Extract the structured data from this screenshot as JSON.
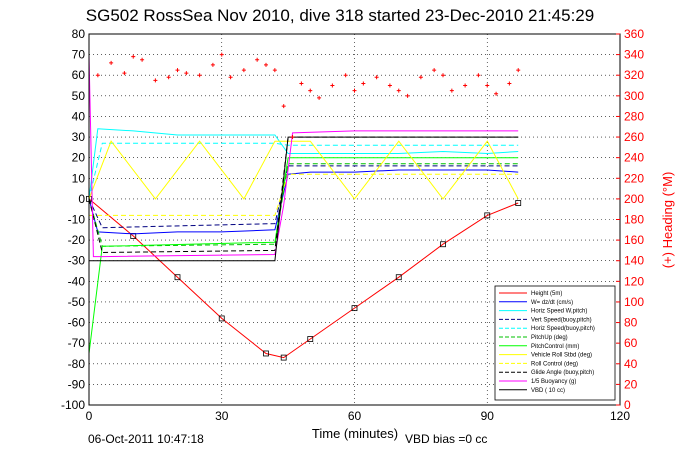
{
  "chart_data": {
    "type": "line",
    "title": "SG502 RossSea Nov 2010, dive 318 started 23-Dec-2010 21:45:29",
    "xlabel": "Time (minutes)",
    "ylabel_right": "(+) Heading (°M)",
    "xlim": [
      0,
      120
    ],
    "ylim_left": [
      -100,
      80
    ],
    "ylim_right": [
      0,
      360
    ],
    "xticks": [
      "0",
      "30",
      "60",
      "90",
      "120"
    ],
    "yticks_left": [
      "80",
      "70",
      "60",
      "50",
      "40",
      "30",
      "20",
      "10",
      "0",
      "-10",
      "-20",
      "-30",
      "-40",
      "-50",
      "-60",
      "-70",
      "-80",
      "-90",
      "-100"
    ],
    "yticks_right": [
      "360",
      "340",
      "320",
      "300",
      "280",
      "260",
      "240",
      "220",
      "200",
      "180",
      "160",
      "140",
      "120",
      "100",
      "80",
      "60",
      "40",
      "20",
      "0"
    ],
    "grid": "dotted",
    "legend_position": "lower-right",
    "series": [
      {
        "name": "Height (5m)",
        "color": "#ff0000",
        "style": "solid",
        "x": [
          0,
          10,
          20,
          30,
          40,
          44,
          50,
          60,
          70,
          80,
          90,
          97
        ],
        "y": [
          0,
          -18,
          -38,
          -58,
          -75,
          -77,
          -68,
          -53,
          -38,
          -22,
          -8,
          -2
        ]
      },
      {
        "name": "W= dz/dt (cm/s)",
        "color": "#0000ff",
        "style": "solid",
        "x": [
          0,
          2,
          10,
          20,
          30,
          42,
          45,
          50,
          60,
          70,
          80,
          90,
          97
        ],
        "y": [
          0,
          -16,
          -17,
          -16,
          -16,
          -15,
          12,
          13,
          13,
          14,
          14,
          14,
          13
        ]
      },
      {
        "name": "Horiz Speed W,pitch)",
        "color": "#00ffff",
        "style": "solid",
        "x": [
          0,
          2,
          10,
          20,
          30,
          42,
          45,
          50,
          60,
          70,
          80,
          90,
          97
        ],
        "y": [
          0,
          34,
          33,
          31,
          31,
          31,
          22,
          22,
          22,
          22,
          23,
          22,
          23
        ]
      },
      {
        "name": "Vert Speed(buoy,pitch)",
        "color": "#000080",
        "style": "dashed",
        "x": [
          0,
          3,
          42,
          45,
          97
        ],
        "y": [
          0,
          -14,
          -12,
          16,
          16
        ]
      },
      {
        "name": "Horiz Speed(buoy,pitch)",
        "color": "#00ffff",
        "style": "dashed",
        "x": [
          0,
          3,
          42,
          45,
          97
        ],
        "y": [
          0,
          27,
          27,
          26,
          26
        ]
      },
      {
        "name": "PitchUp (deg)",
        "color": "#00c000",
        "style": "dashed",
        "x": [
          0,
          3,
          42,
          45,
          97
        ],
        "y": [
          0,
          -23,
          -22,
          17,
          17
        ]
      },
      {
        "name": "PitchControl (mm)",
        "color": "#00ff00",
        "style": "solid",
        "x": [
          0,
          3,
          42,
          45,
          97
        ],
        "y": [
          -75,
          -23,
          -21,
          20,
          20
        ]
      },
      {
        "name": "Vehicle Roll Stbd (deg)",
        "color": "#ffff00",
        "style": "solid",
        "x": [
          0,
          5,
          15,
          25,
          35,
          42,
          50,
          60,
          70,
          80,
          90,
          97
        ],
        "y": [
          0,
          28,
          0,
          28,
          0,
          28,
          28,
          0,
          28,
          0,
          28,
          0
        ]
      },
      {
        "name": "Roll Control (deg)",
        "color": "#ffff00",
        "style": "dashed",
        "x": [
          0,
          42,
          45,
          97
        ],
        "y": [
          -8,
          -8,
          12,
          12
        ]
      },
      {
        "name": "Glide Angle (buoy,pitch)",
        "color": "#000000",
        "style": "dashed",
        "x": [
          0,
          3,
          42,
          45,
          97
        ],
        "y": [
          0,
          -26,
          -25,
          30,
          30
        ]
      },
      {
        "name": "1/5 Buoyancy (g)",
        "color": "#ff00ff",
        "style": "solid",
        "x": [
          0,
          1,
          3,
          42,
          44,
          46,
          60,
          80,
          97
        ],
        "y": [
          70,
          -28,
          -28,
          -27,
          -3,
          32,
          33,
          33,
          33
        ]
      },
      {
        "name": "VBD ( 10 cc)",
        "color": "#000000",
        "style": "solid",
        "x": [
          0,
          42,
          45,
          97
        ],
        "y": [
          -30,
          -30,
          30,
          30
        ]
      },
      {
        "name": "Heading",
        "color": "#ff0000",
        "style": "markers",
        "axis": "right",
        "x": [
          2,
          5,
          8,
          10,
          12,
          15,
          18,
          20,
          22,
          25,
          28,
          30,
          32,
          35,
          38,
          40,
          42,
          44,
          46,
          48,
          50,
          52,
          55,
          58,
          60,
          62,
          65,
          68,
          70,
          72,
          75,
          78,
          80,
          82,
          85,
          88,
          90,
          92,
          95,
          97
        ],
        "y": [
          320,
          332,
          322,
          338,
          335,
          315,
          318,
          325,
          322,
          320,
          330,
          340,
          318,
          325,
          335,
          330,
          325,
          290,
          260,
          312,
          305,
          298,
          310,
          320,
          305,
          312,
          318,
          310,
          305,
          300,
          318,
          325,
          320,
          305,
          310,
          320,
          310,
          302,
          312,
          325
        ]
      }
    ]
  },
  "footer": {
    "date": "06-Oct-2011 10:47:18",
    "vbd_bias": "VBD bias =0 cc"
  }
}
